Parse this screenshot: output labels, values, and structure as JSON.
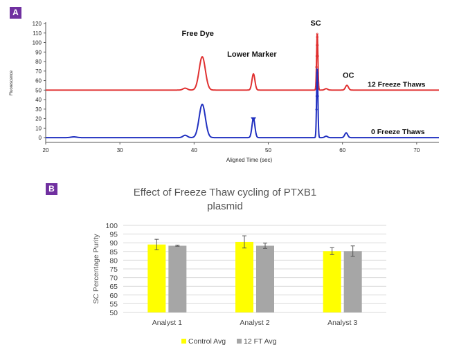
{
  "panels": {
    "a_label": "A",
    "b_label": "B"
  },
  "chart_data": [
    {
      "type": "line",
      "xlabel": "Aligned Time (sec)",
      "ylabel": "Fluorescence",
      "xlim": [
        20,
        73
      ],
      "ylim": [
        -5,
        120
      ],
      "xticks": [
        "20",
        "30",
        "40",
        "50",
        "60",
        "70"
      ],
      "yticks": [
        "0",
        "10",
        "20",
        "30",
        "40",
        "50",
        "60",
        "70",
        "80",
        "90",
        "100",
        "110",
        "120"
      ],
      "grid": false,
      "annotations": [
        "Free Dye",
        "Lower Marker",
        "SC",
        "OC"
      ],
      "series": [
        {
          "name": "12 Freeze Thaws",
          "color": "#e03030",
          "baseline": 50,
          "peaks": [
            {
              "x": 38.8,
              "height": 2,
              "width": 0.3
            },
            {
              "x": 41.1,
              "height": 35,
              "width": 0.42
            },
            {
              "x": 48.0,
              "height": 17,
              "width": 0.2
            },
            {
              "x": 56.6,
              "height": 59,
              "width": 0.09
            },
            {
              "x": 57.8,
              "height": 1.5,
              "width": 0.2
            },
            {
              "x": 60.6,
              "height": 5,
              "width": 0.2
            }
          ]
        },
        {
          "name": "0 Freeze Thaws",
          "color": "#2030c0",
          "baseline": 0,
          "peaks": [
            {
              "x": 23.8,
              "height": 0.8,
              "width": 0.4
            },
            {
              "x": 38.8,
              "height": 2.5,
              "width": 0.3
            },
            {
              "x": 41.1,
              "height": 35,
              "width": 0.42
            },
            {
              "x": 48.0,
              "height": 20,
              "width": 0.2
            },
            {
              "x": 56.6,
              "height": 72,
              "width": 0.09
            },
            {
              "x": 57.8,
              "height": 1.5,
              "width": 0.2
            },
            {
              "x": 60.5,
              "height": 5,
              "width": 0.2
            }
          ]
        }
      ]
    },
    {
      "type": "bar",
      "title": "Effect of Freeze Thaw cycling of PTXB1 plasmid",
      "title_lines": [
        "Effect of Freeze Thaw cycling of PTXB1",
        "plasmid"
      ],
      "xlabel": "",
      "ylabel": "SC Percentage Purity",
      "ylim": [
        50,
        100
      ],
      "yticks": [
        "50",
        "55",
        "60",
        "65",
        "70",
        "75",
        "80",
        "85",
        "90",
        "95",
        "100"
      ],
      "categories": [
        "Analyst 1",
        "Analyst 2",
        "Analyst 3"
      ],
      "legend_position": "bottom",
      "grid": true,
      "series": [
        {
          "name": "Control Avg",
          "color": "#ffff00",
          "values": [
            89,
            90.5,
            85.2
          ],
          "errors": [
            3,
            3.5,
            2
          ]
        },
        {
          "name": "12 FT Avg",
          "color": "#a6a6a6",
          "values": [
            88.3,
            88.3,
            85.2
          ],
          "errors": [
            0.3,
            1.5,
            3
          ]
        }
      ]
    }
  ]
}
